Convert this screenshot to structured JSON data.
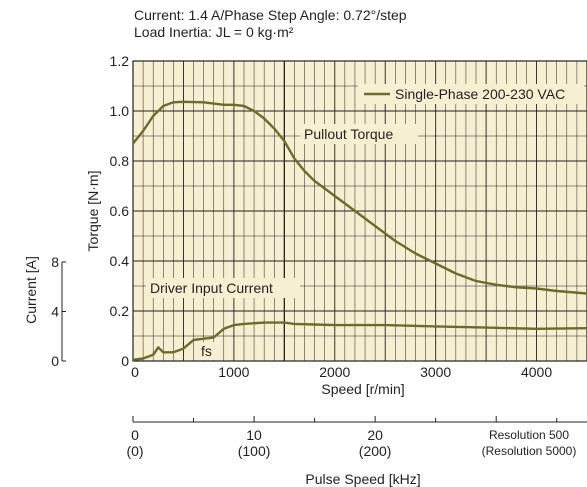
{
  "header": {
    "line1": "Current: 1.4 A/Phase    Step Angle: 0.72°/step",
    "line2": "Load Inertia: JL = 0 kg·m²"
  },
  "legend": {
    "label": "Single-Phase 200-230 VAC",
    "position": "top-right"
  },
  "colors": {
    "plot_bg": "#f7efd2",
    "series": "#6b6b2e",
    "grid": "#231f20",
    "text": "#231f20"
  },
  "chart_data": {
    "type": "line",
    "xlabel": "Speed [r/min]",
    "ylabel": "Torque [N·m]",
    "y2label": "Current [A]",
    "xlim": [
      0,
      4500
    ],
    "ylim": [
      0,
      1.2
    ],
    "y2lim": [
      0,
      12
    ],
    "x_ticks": [
      "0",
      "1000",
      "2000",
      "3000",
      "4000"
    ],
    "y_ticks": [
      "0",
      "0.2",
      "0.4",
      "0.6",
      "0.8",
      "1.0",
      "1.2"
    ],
    "y2_ticks": [
      "0",
      "4",
      "8"
    ],
    "grid": true,
    "annotations": {
      "torque_label": "Pullout Torque",
      "current_label": "Driver Input Current",
      "fs_label": "fs"
    },
    "series": [
      {
        "name": "Pullout Torque",
        "axis": "torque",
        "x": [
          0,
          100,
          200,
          300,
          400,
          500,
          700,
          900,
          1000,
          1100,
          1200,
          1300,
          1400,
          1500,
          1600,
          1700,
          1800,
          2000,
          2200,
          2400,
          2600,
          2800,
          3000,
          3200,
          3400,
          3600,
          3800,
          4000,
          4200,
          4500
        ],
        "y": [
          0.87,
          0.92,
          0.98,
          1.02,
          1.035,
          1.037,
          1.035,
          1.025,
          1.025,
          1.02,
          1.0,
          0.97,
          0.93,
          0.88,
          0.81,
          0.76,
          0.72,
          0.66,
          0.6,
          0.54,
          0.48,
          0.43,
          0.39,
          0.35,
          0.32,
          0.305,
          0.295,
          0.29,
          0.28,
          0.27
        ]
      },
      {
        "name": "Driver Input Current",
        "axis": "current",
        "x": [
          0,
          100,
          200,
          250,
          300,
          400,
          500,
          600,
          700,
          800,
          900,
          1000,
          1100,
          1300,
          1500,
          1600,
          1800,
          2000,
          2500,
          3000,
          3500,
          4000,
          4500
        ],
        "y": [
          0.1,
          0.2,
          0.5,
          1.1,
          0.7,
          0.7,
          1.0,
          1.7,
          1.8,
          1.9,
          2.6,
          2.9,
          3.0,
          3.1,
          3.1,
          3.0,
          2.95,
          2.9,
          2.9,
          2.8,
          2.7,
          2.6,
          2.65
        ]
      }
    ],
    "secondary_axis": {
      "label": "Pulse Speed [kHz]",
      "ticks": [
        {
          "x": 0,
          "line1": "0",
          "line2": "(0)"
        },
        {
          "x": 1200,
          "line1": "10",
          "line2": "(100)"
        },
        {
          "x": 2400,
          "line1": "20",
          "line2": "(200)"
        }
      ],
      "note_line1": "Resolution 500",
      "note_line2": "(Resolution 5000)"
    }
  }
}
